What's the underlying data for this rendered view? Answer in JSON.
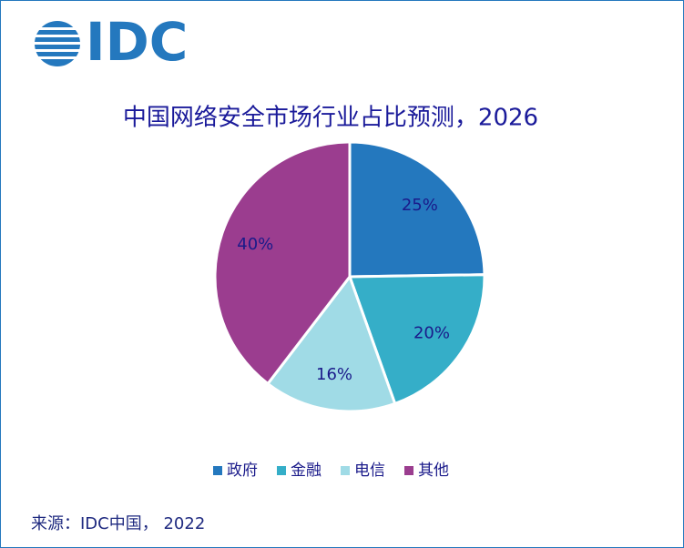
{
  "chart_data": {
    "type": "pie",
    "logo": "IDC",
    "title": "中国网络安全市场行业占比预测，2026",
    "categories": [
      "政府",
      "金融",
      "电信",
      "其他"
    ],
    "values": [
      25,
      20,
      16,
      40
    ],
    "value_labels": [
      "25%",
      "20%",
      "16%",
      "40%"
    ],
    "colors": [
      "#2478be",
      "#35aec8",
      "#a0dbe6",
      "#9b3d8f"
    ],
    "legend": "bottom",
    "source": "来源：IDC中国， 2022"
  }
}
